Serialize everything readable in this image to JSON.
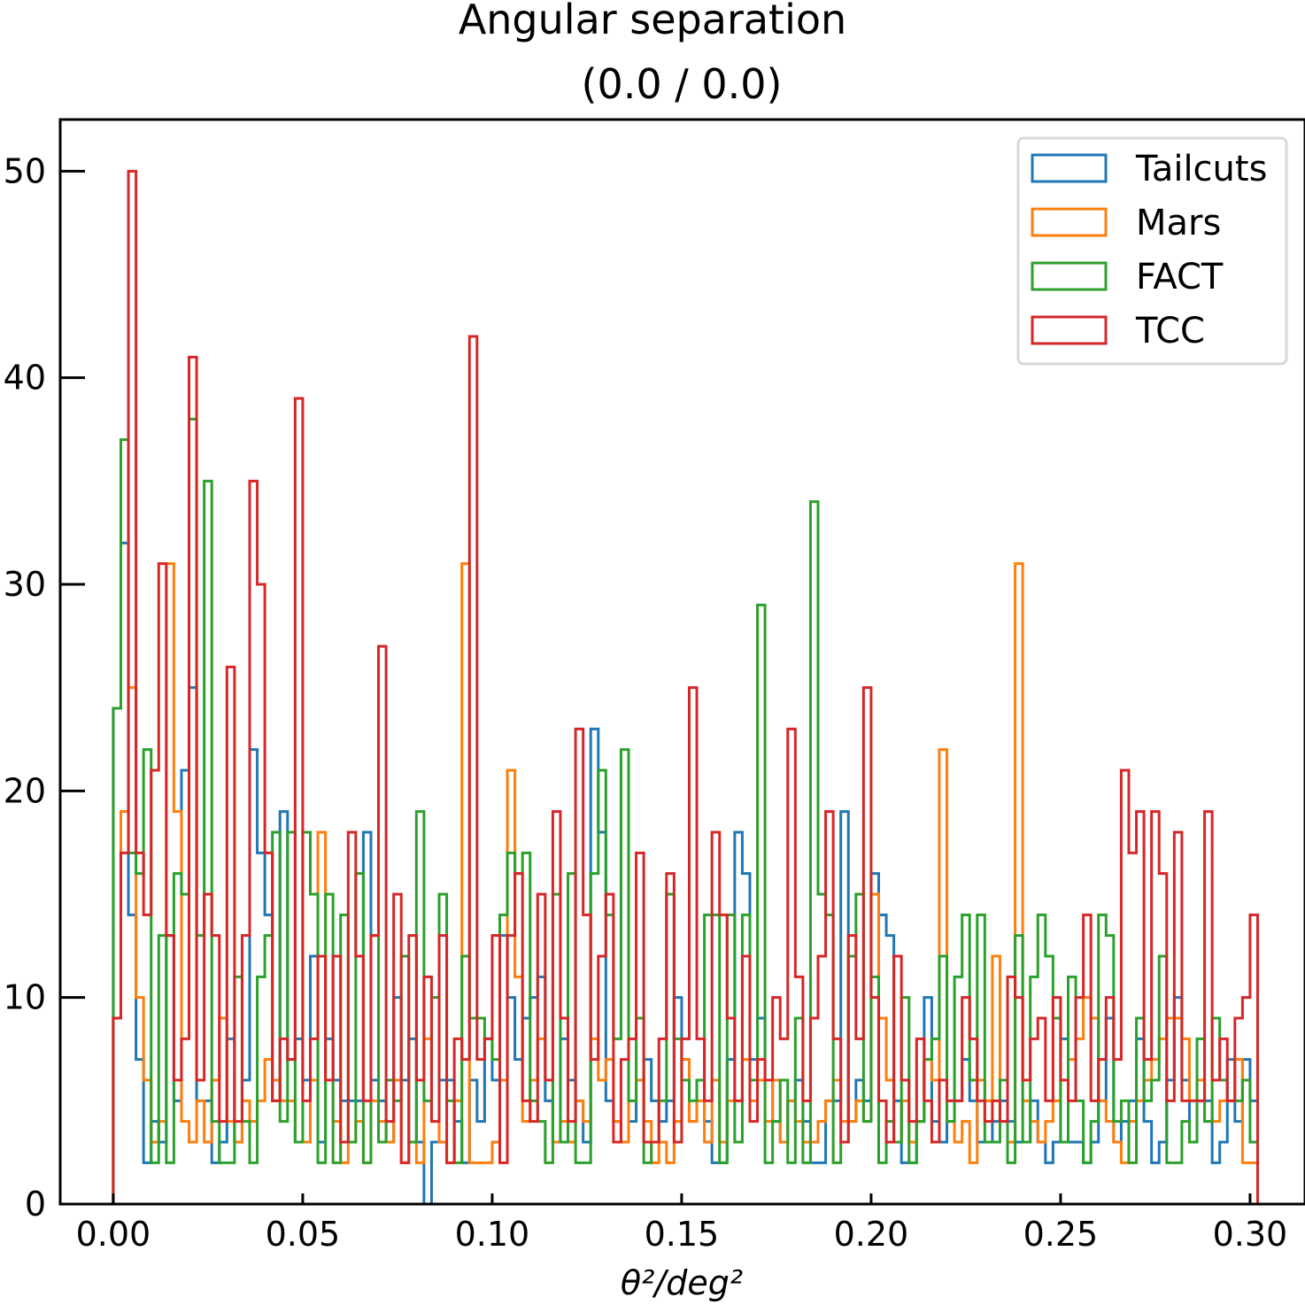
{
  "chart_data": {
    "type": "step",
    "title": "Angular separation",
    "subtitle": "(0.0 / 0.0)",
    "xlabel": "θ²/deg²",
    "ylabel": "",
    "xlim": [
      -0.014,
      0.3145
    ],
    "ylim": [
      0,
      52.5
    ],
    "bin_width": 0.002,
    "x_start": 0.0,
    "xticks": [
      "0.00",
      "0.05",
      "0.10",
      "0.15",
      "0.20",
      "0.25",
      "0.30"
    ],
    "xtick_values": [
      0.0,
      0.05,
      0.1,
      0.15,
      0.2,
      0.25,
      0.3
    ],
    "yticks": [
      "0",
      "10",
      "20",
      "30",
      "40",
      "50"
    ],
    "ytick_values": [
      0,
      10,
      20,
      30,
      40,
      50
    ],
    "legend_position": "top-right",
    "series": [
      {
        "name": "Tailcuts",
        "color": "#1f77b4",
        "values": [
          24,
          32,
          14,
          7,
          2,
          4,
          3,
          13,
          5,
          21,
          25,
          5,
          5,
          2,
          3,
          8,
          3,
          6,
          22,
          17,
          14,
          5,
          19,
          7,
          8,
          6,
          12,
          3,
          8,
          6,
          5,
          5,
          5,
          18,
          6,
          5,
          3,
          10,
          6,
          8,
          3,
          0,
          3,
          6,
          6,
          4,
          2,
          6,
          4,
          8,
          6,
          13,
          10,
          7,
          9,
          10,
          11,
          5,
          3,
          8,
          6,
          5,
          3,
          23,
          18,
          5,
          4,
          3,
          4,
          6,
          7,
          5,
          4,
          5,
          10,
          7,
          4,
          6,
          4,
          2,
          2,
          7,
          18,
          16,
          7,
          9,
          6,
          4,
          3,
          5,
          6,
          4,
          2,
          2,
          5,
          5,
          19,
          4,
          6,
          5,
          16,
          14,
          13,
          5,
          2,
          2,
          4,
          10,
          4,
          3,
          5,
          5,
          7,
          5,
          3,
          3,
          4,
          5,
          4,
          3,
          3,
          5,
          3,
          2,
          3,
          8,
          3,
          3,
          2,
          3,
          5,
          9,
          3,
          4,
          5,
          8,
          4,
          2,
          3,
          6,
          10,
          6,
          3,
          5,
          5,
          2,
          3,
          7,
          4,
          7,
          5
        ]
      },
      {
        "name": "Mars",
        "color": "#ff7f0e",
        "values": [
          9,
          19,
          25,
          10,
          6,
          3,
          4,
          31,
          19,
          4,
          3,
          5,
          3,
          6,
          9,
          4,
          3,
          5,
          4,
          5,
          7,
          6,
          5,
          5,
          3,
          3,
          6,
          18,
          6,
          4,
          2,
          3,
          4,
          2,
          5,
          4,
          3,
          6,
          2,
          3,
          2,
          8,
          4,
          3,
          2,
          5,
          31,
          2,
          2,
          2,
          3,
          6,
          21,
          11,
          4,
          6,
          8,
          6,
          3,
          4,
          3,
          5,
          4,
          8,
          6,
          7,
          4,
          3,
          5,
          6,
          4,
          2,
          3,
          2,
          4,
          7,
          4,
          5,
          3,
          6,
          3,
          5,
          5,
          7,
          5,
          6,
          4,
          6,
          3,
          5,
          4,
          3,
          3,
          4,
          5,
          6,
          4,
          4,
          5,
          4,
          15,
          9,
          6,
          3,
          5,
          3,
          4,
          7,
          6,
          22,
          4,
          3,
          4,
          2,
          6,
          5,
          12,
          4,
          3,
          31,
          5,
          4,
          3,
          4,
          5,
          6,
          7,
          8,
          10,
          9,
          5,
          4,
          3,
          2,
          4,
          5,
          6,
          7,
          8,
          9,
          9,
          8,
          5,
          6,
          4,
          4,
          5,
          5,
          7,
          2,
          2
        ]
      },
      {
        "name": "FACT",
        "color": "#2ca02c",
        "values": [
          24,
          37,
          17,
          16,
          22,
          2,
          13,
          2,
          16,
          15,
          38,
          13,
          35,
          4,
          2,
          2,
          11,
          4,
          2,
          11,
          13,
          18,
          4,
          18,
          3,
          18,
          15,
          2,
          15,
          2,
          14,
          3,
          16,
          2,
          13,
          3,
          6,
          5,
          12,
          3,
          19,
          5,
          10,
          15,
          5,
          2,
          12,
          9,
          9,
          8,
          7,
          14,
          17,
          16,
          17,
          5,
          4,
          2,
          15,
          3,
          16,
          2,
          2,
          16,
          21,
          14,
          8,
          22,
          5,
          9,
          2,
          3,
          5,
          15,
          8,
          6,
          5,
          6,
          14,
          14,
          2,
          14,
          3,
          14,
          6,
          29,
          2,
          4,
          6,
          2,
          9,
          2,
          34,
          15,
          14,
          2,
          3,
          12,
          15,
          4,
          11,
          2,
          4,
          3,
          10,
          2,
          4,
          7,
          8,
          12,
          4,
          11,
          14,
          6,
          14,
          3,
          3,
          6,
          2,
          13,
          3,
          11,
          14,
          12,
          9,
          3,
          11,
          5,
          2,
          4,
          14,
          13,
          4,
          5,
          2,
          9,
          5,
          6,
          12,
          2,
          2,
          4,
          3,
          8,
          4,
          9,
          6,
          5,
          5,
          6,
          3
        ]
      },
      {
        "name": "TCC",
        "color": "#d62728",
        "values": [
          9,
          17,
          50,
          17,
          14,
          21,
          31,
          13,
          6,
          8,
          41,
          6,
          15,
          13,
          4,
          26,
          4,
          13,
          35,
          30,
          17,
          5,
          8,
          7,
          39,
          5,
          8,
          12,
          6,
          12,
          3,
          18,
          12,
          5,
          13,
          27,
          4,
          15,
          2,
          13,
          6,
          11,
          4,
          13,
          2,
          8,
          7,
          42,
          7,
          8,
          13,
          2,
          13,
          16,
          5,
          4,
          15,
          6,
          19,
          9,
          4,
          23,
          14,
          7,
          12,
          15,
          3,
          7,
          8,
          17,
          3,
          3,
          8,
          16,
          3,
          8,
          25,
          8,
          5,
          18,
          14,
          9,
          5,
          12,
          4,
          7,
          6,
          10,
          8,
          23,
          11,
          5,
          9,
          12,
          19,
          8,
          3,
          13,
          8,
          25,
          10,
          5,
          3,
          12,
          6,
          4,
          8,
          5,
          3,
          6,
          5,
          5,
          10,
          8,
          5,
          4,
          5,
          4,
          11,
          10,
          6,
          8,
          9,
          5,
          10,
          6,
          5,
          10,
          14,
          5,
          7,
          10,
          7,
          21,
          17,
          19,
          7,
          19,
          16,
          5,
          18,
          5,
          5,
          5,
          19,
          6,
          8,
          5,
          9,
          10,
          14
        ]
      }
    ]
  }
}
